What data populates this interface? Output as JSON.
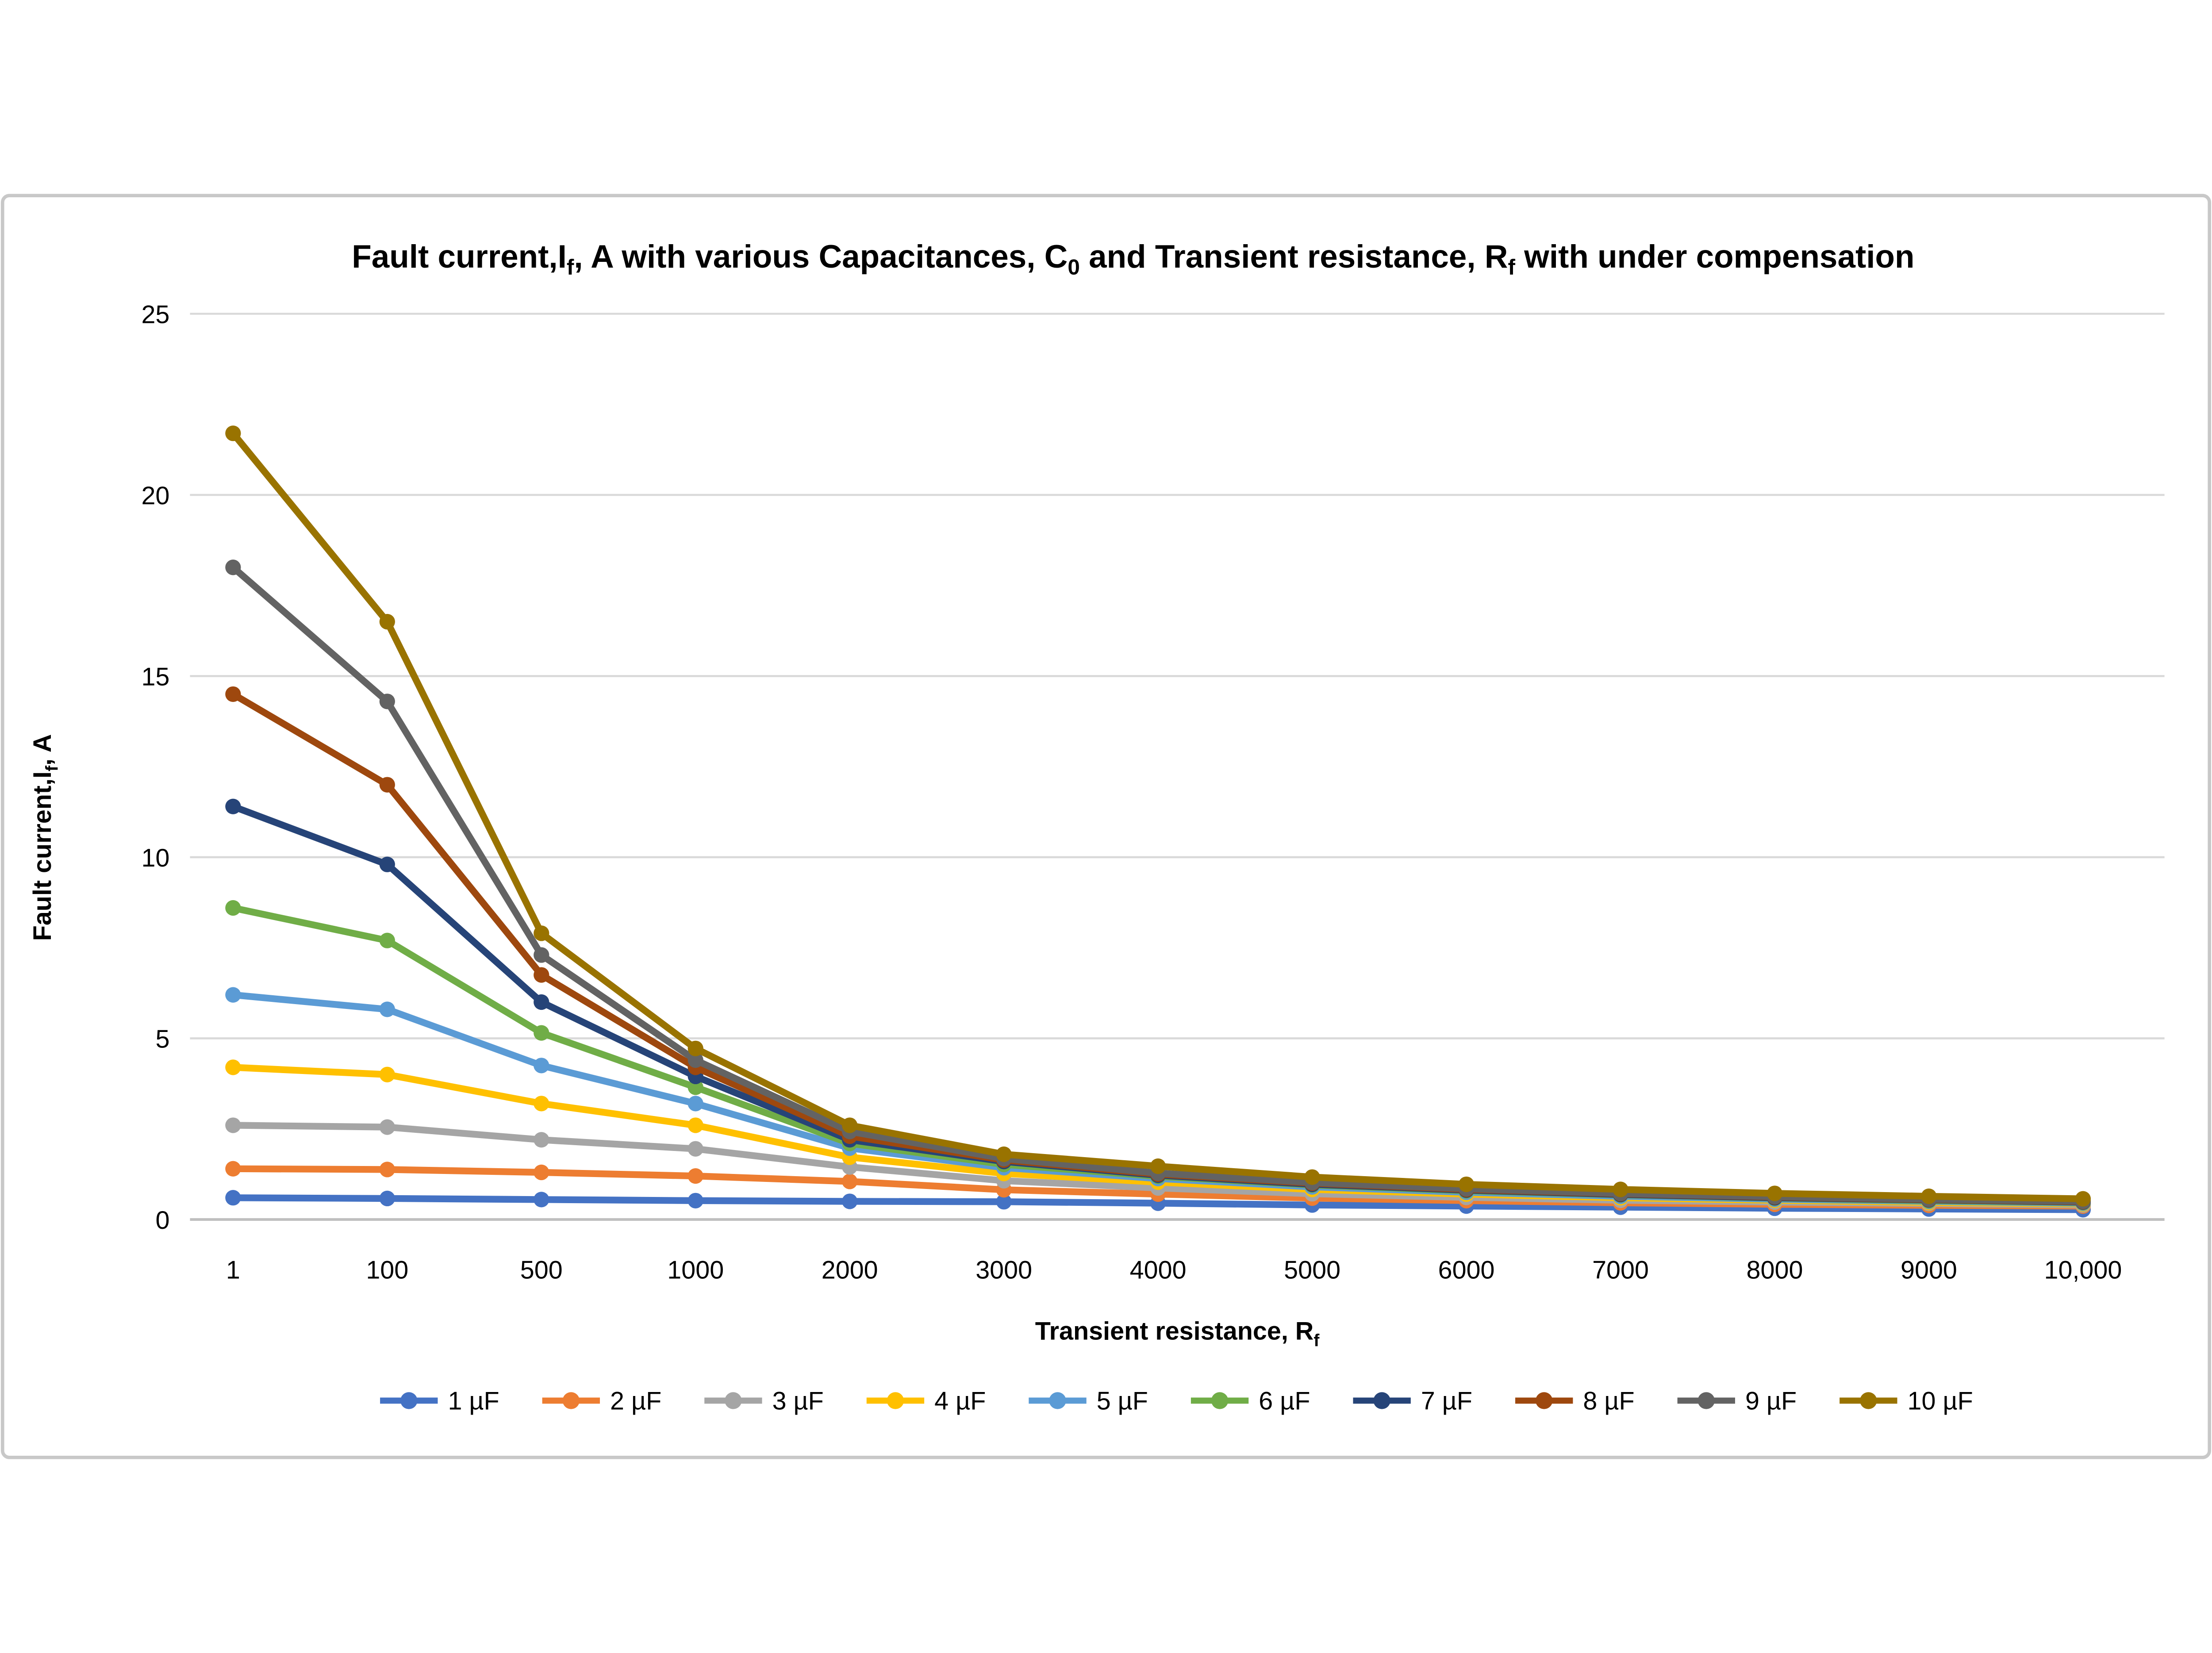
{
  "chart_data": {
    "type": "line",
    "title_runs": [
      {
        "t": "Fault current,I"
      },
      {
        "t": "f",
        "sub": true
      },
      {
        "t": ", A with various Capacitances, C"
      },
      {
        "t": "0",
        "sub": true
      },
      {
        "t": " and Transient resistance, R"
      },
      {
        "t": "f",
        "sub": true
      },
      {
        "t": " with under compensation"
      }
    ],
    "x_axis": {
      "title_runs": [
        {
          "t": "Transient resistance, R"
        },
        {
          "t": "f",
          "sub": true
        }
      ],
      "categories": [
        "1",
        "100",
        "500",
        "1000",
        "2000",
        "3000",
        "4000",
        "5000",
        "6000",
        "7000",
        "8000",
        "9000",
        "10,000"
      ]
    },
    "y_axis": {
      "title_runs": [
        {
          "t": "Fault current,I"
        },
        {
          "t": "f",
          "sub": true
        },
        {
          "t": ", A"
        }
      ],
      "min": 0,
      "max": 25,
      "step": 5,
      "tick_labels": [
        "0",
        "5",
        "10",
        "15",
        "20",
        "25"
      ]
    },
    "grid": true,
    "legend_position": "bottom",
    "series": [
      {
        "name": "1 µF",
        "color": "#4472C4",
        "values": [
          0.6,
          0.58,
          0.55,
          0.52,
          0.5,
          0.49,
          0.45,
          0.4,
          0.37,
          0.34,
          0.31,
          0.29,
          0.27
        ]
      },
      {
        "name": "2 µF",
        "color": "#ED7D31",
        "values": [
          1.4,
          1.38,
          1.3,
          1.2,
          1.05,
          0.82,
          0.7,
          0.59,
          0.52,
          0.46,
          0.42,
          0.39,
          0.37
        ]
      },
      {
        "name": "3 µF",
        "color": "#A5A5A5",
        "values": [
          2.6,
          2.55,
          2.2,
          1.95,
          1.45,
          1.07,
          0.87,
          0.71,
          0.61,
          0.53,
          0.48,
          0.44,
          0.4
        ]
      },
      {
        "name": "4 µF",
        "color": "#FFC000",
        "values": [
          4.2,
          4.0,
          3.2,
          2.6,
          1.72,
          1.27,
          1.03,
          0.83,
          0.7,
          0.6,
          0.53,
          0.47,
          0.43
        ]
      },
      {
        "name": "5 µF",
        "color": "#5B9BD5",
        "values": [
          6.2,
          5.8,
          4.25,
          3.2,
          1.97,
          1.43,
          1.13,
          0.9,
          0.75,
          0.64,
          0.56,
          0.5,
          0.45
        ]
      },
      {
        "name": "6 µF",
        "color": "#70AD47",
        "values": [
          8.6,
          7.7,
          5.15,
          3.65,
          2.1,
          1.52,
          1.19,
          0.95,
          0.79,
          0.68,
          0.59,
          0.52,
          0.47
        ]
      },
      {
        "name": "7 µF",
        "color": "#264478",
        "values": [
          11.4,
          9.8,
          6.0,
          3.95,
          2.2,
          1.6,
          1.22,
          0.97,
          0.81,
          0.69,
          0.6,
          0.54,
          0.48
        ]
      },
      {
        "name": "8 µF",
        "color": "#9E480E",
        "values": [
          14.5,
          12.0,
          6.75,
          4.2,
          2.3,
          1.64,
          1.25,
          1.0,
          0.83,
          0.71,
          0.62,
          0.55,
          0.49
        ]
      },
      {
        "name": "9 µF",
        "color": "#636363",
        "values": [
          18.0,
          14.3,
          7.3,
          4.4,
          2.43,
          1.68,
          1.28,
          1.02,
          0.85,
          0.72,
          0.63,
          0.56,
          0.5
        ]
      },
      {
        "name": "10 µF",
        "color": "#997300",
        "values": [
          21.7,
          16.5,
          7.9,
          4.72,
          2.6,
          1.8,
          1.47,
          1.17,
          0.97,
          0.83,
          0.72,
          0.64,
          0.57
        ]
      }
    ]
  },
  "colors": {
    "background": "#FFFFFF",
    "border": "#C8C8C8",
    "gridline": "#D9D9D9",
    "axis_line": "#BFBFBF",
    "text": "#000000"
  }
}
